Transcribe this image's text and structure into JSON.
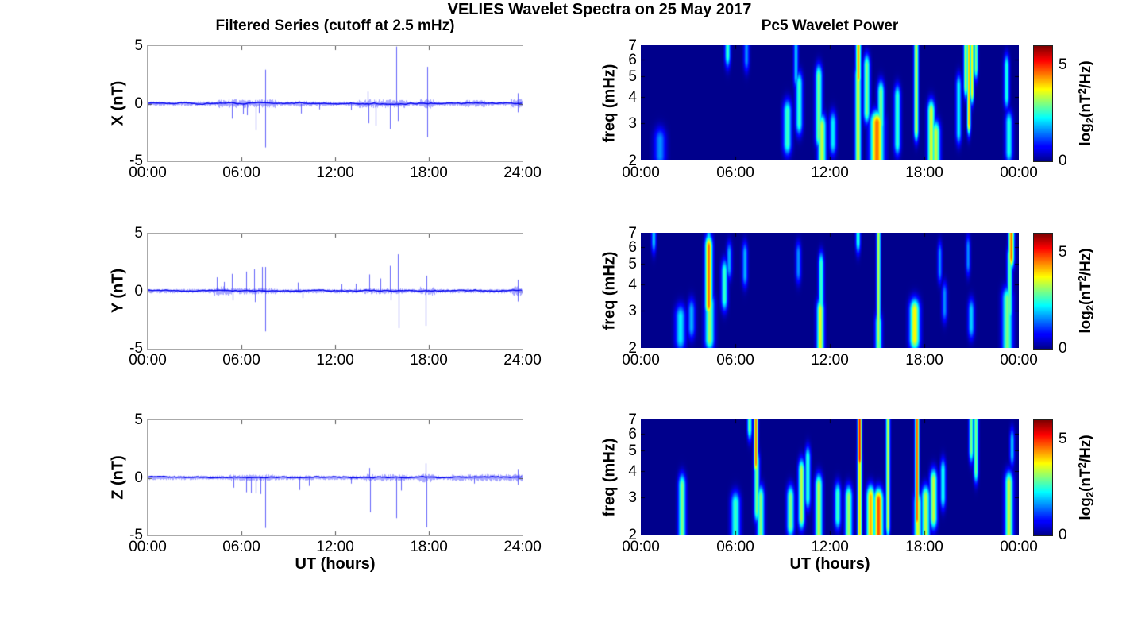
{
  "figure": {
    "title": "VELIES Wavelet Spectra on 25 May 2017",
    "background": "#ffffff"
  },
  "left_column": {
    "title": "Filtered Series (cutoff at 2.5 mHz)",
    "xlabel": "UT (hours)",
    "x_tick_labels": [
      "00:00",
      "06:00",
      "12:00",
      "18:00",
      "24:00"
    ],
    "y_tick_labels": [
      "5",
      "0",
      "-5"
    ]
  },
  "right_column": {
    "title": "Pc5 Wavelet Power",
    "xlabel": "UT (hours)",
    "ylabel": "freq (mHz)",
    "x_tick_labels": [
      "00:00",
      "06:00",
      "12:00",
      "18:00",
      "00:00"
    ],
    "y_tick_labels": [
      "7",
      "6",
      "5",
      "4",
      "3",
      "2"
    ],
    "colorbar": {
      "tick_labels": [
        "5",
        "0"
      ],
      "label": {
        "pre": "log",
        "sub": "2",
        "mid": "(nT",
        "sup": "2",
        "post": "/Hz)"
      }
    }
  },
  "chart_data": [
    {
      "type": "line",
      "series": "X",
      "ylabel": "X (nT)",
      "xlabel": "UT (hours)",
      "xlim_hours": [
        0,
        24
      ],
      "ylim": [
        -5,
        5
      ],
      "x_tick_hours": [
        0,
        6,
        12,
        18,
        24
      ],
      "x_tick_labels": [
        "00:00",
        "06:00",
        "12:00",
        "18:00",
        "24:00"
      ],
      "y_ticks": [
        5,
        0,
        -5
      ],
      "color": "#0000ee",
      "seed": 11,
      "noise_base_std": 0.06,
      "noise_bursts": [
        [
          4.5,
          8.2,
          0.12
        ],
        [
          9.4,
          10.6,
          0.08
        ],
        [
          13.4,
          16.6,
          0.12
        ],
        [
          17.4,
          18.3,
          0.13
        ],
        [
          20.2,
          21.6,
          0.1
        ],
        [
          23.2,
          24,
          0.13
        ]
      ],
      "spikes": [
        [
          5.4,
          -1.3
        ],
        [
          6.1,
          -0.9
        ],
        [
          6.35,
          -1.0
        ],
        [
          6.9,
          -2.3
        ],
        [
          7.1,
          -0.8
        ],
        [
          7.5,
          2.95
        ],
        [
          7.5,
          -3.8
        ],
        [
          9.8,
          -0.85
        ],
        [
          11.0,
          -0.5
        ],
        [
          13.0,
          -0.55
        ],
        [
          14.1,
          1.05
        ],
        [
          14.15,
          -1.7
        ],
        [
          14.6,
          -1.9
        ],
        [
          15.5,
          -2.2
        ],
        [
          15.9,
          4.95
        ],
        [
          16.0,
          -1.5
        ],
        [
          17.9,
          3.2
        ],
        [
          17.92,
          -2.9
        ],
        [
          23.7,
          0.9
        ],
        [
          23.72,
          -0.75
        ]
      ]
    },
    {
      "type": "line",
      "series": "Y",
      "ylabel": "Y (nT)",
      "xlabel": "UT (hours)",
      "xlim_hours": [
        0,
        24
      ],
      "ylim": [
        -5,
        5
      ],
      "x_tick_hours": [
        0,
        6,
        12,
        18,
        24
      ],
      "x_tick_labels": [
        "00:00",
        "06:00",
        "12:00",
        "18:00",
        "24:00"
      ],
      "y_ticks": [
        5,
        0,
        -5
      ],
      "color": "#0000ee",
      "seed": 22,
      "noise_base_std": 0.06,
      "noise_bursts": [
        [
          4.2,
          5.2,
          0.13
        ],
        [
          5.2,
          8.2,
          0.09
        ],
        [
          13.8,
          16.3,
          0.08
        ],
        [
          17.4,
          18.4,
          0.12
        ],
        [
          23.3,
          24,
          0.13
        ]
      ],
      "spikes": [
        [
          4.4,
          1.2
        ],
        [
          4.9,
          0.8
        ],
        [
          5.4,
          1.5
        ],
        [
          5.45,
          -0.8
        ],
        [
          6.3,
          1.7
        ],
        [
          6.8,
          1.9
        ],
        [
          6.85,
          -0.95
        ],
        [
          7.3,
          2.1
        ],
        [
          7.5,
          -3.5
        ],
        [
          7.55,
          2.1
        ],
        [
          9.6,
          0.75
        ],
        [
          9.9,
          -0.6
        ],
        [
          12.4,
          0.6
        ],
        [
          13.3,
          0.65
        ],
        [
          14.2,
          1.45
        ],
        [
          14.9,
          1.1
        ],
        [
          15.5,
          2.2
        ],
        [
          15.55,
          -0.8
        ],
        [
          16.0,
          3.2
        ],
        [
          16.05,
          -3.2
        ],
        [
          17.8,
          -3.0
        ],
        [
          17.85,
          1.35
        ],
        [
          23.7,
          1.0
        ],
        [
          23.72,
          -0.9
        ]
      ]
    },
    {
      "type": "line",
      "series": "Z",
      "ylabel": "Z (nT)",
      "xlabel": "UT (hours)",
      "xlim_hours": [
        0,
        24
      ],
      "ylim": [
        -5,
        5
      ],
      "x_tick_hours": [
        0,
        6,
        12,
        18,
        24
      ],
      "x_tick_labels": [
        "00:00",
        "06:00",
        "12:00",
        "18:00",
        "24:00"
      ],
      "y_ticks": [
        5,
        0,
        -5
      ],
      "color": "#0000ee",
      "seed": 33,
      "noise_base_std": 0.06,
      "noise_bursts": [
        [
          5.2,
          8.2,
          0.09
        ],
        [
          9.4,
          10.6,
          0.07
        ],
        [
          13.8,
          16.6,
          0.1
        ],
        [
          17.3,
          18.4,
          0.12
        ],
        [
          19.4,
          24,
          0.1
        ]
      ],
      "spikes": [
        [
          5.5,
          -0.85
        ],
        [
          6.3,
          -1.25
        ],
        [
          6.6,
          -1.3
        ],
        [
          6.9,
          -1.35
        ],
        [
          7.2,
          -1.4
        ],
        [
          7.5,
          -4.35
        ],
        [
          9.7,
          -1.05
        ],
        [
          10.3,
          -0.7
        ],
        [
          13.0,
          -0.5
        ],
        [
          14.2,
          0.85
        ],
        [
          14.25,
          -3.0
        ],
        [
          15.9,
          -3.5
        ],
        [
          16.2,
          -1.1
        ],
        [
          17.8,
          1.25
        ],
        [
          17.85,
          -4.3
        ],
        [
          20.9,
          -0.5
        ],
        [
          23.7,
          0.7
        ],
        [
          23.72,
          -0.6
        ]
      ]
    },
    {
      "type": "heatmap",
      "series": "X",
      "title": "Pc5 Wavelet Power",
      "ylabel": "freq (mHz)",
      "yscale": "log",
      "ylim_mhz": [
        2,
        7
      ],
      "xlim_hours": [
        0,
        24
      ],
      "x_tick_hours": [
        0,
        6,
        12,
        18,
        24
      ],
      "x_tick_labels": [
        "00:00",
        "06:00",
        "12:00",
        "18:00",
        "00:00"
      ],
      "y_ticks": [
        7,
        6,
        5,
        4,
        3,
        2
      ],
      "clim": [
        0,
        6
      ],
      "colormap": "jet",
      "colorbar_label": "log2(nT^2/Hz)",
      "colorbar_ticks": [
        5,
        0
      ],
      "features": [
        [
          1.2,
          2.1,
          2.5,
          0.25,
          1.6
        ],
        [
          5.5,
          6.3,
          7.0,
          0.12,
          2.6
        ],
        [
          6.7,
          6.0,
          7.0,
          0.12,
          1.6
        ],
        [
          9.3,
          2.4,
          3.4,
          0.18,
          2.6
        ],
        [
          9.85,
          5.0,
          7.0,
          0.1,
          2.0
        ],
        [
          10.05,
          3.0,
          4.6,
          0.15,
          2.6
        ],
        [
          11.3,
          2.6,
          5.0,
          0.15,
          3.0
        ],
        [
          11.5,
          2.0,
          2.9,
          0.18,
          3.4
        ],
        [
          12.2,
          2.4,
          3.0,
          0.15,
          2.2
        ],
        [
          13.8,
          2.0,
          5.0,
          0.13,
          3.6
        ],
        [
          13.82,
          5.0,
          7.0,
          0.11,
          4.3
        ],
        [
          14.35,
          3.4,
          5.6,
          0.14,
          3.0
        ],
        [
          15.0,
          2.0,
          3.0,
          0.28,
          4.6
        ],
        [
          15.25,
          3.0,
          4.2,
          0.15,
          3.0
        ],
        [
          16.3,
          2.4,
          4.0,
          0.14,
          2.6
        ],
        [
          17.5,
          2.8,
          7.0,
          0.1,
          3.5
        ],
        [
          18.45,
          2.0,
          3.4,
          0.16,
          3.6
        ],
        [
          18.75,
          2.0,
          2.7,
          0.18,
          3.4
        ],
        [
          20.2,
          2.7,
          4.5,
          0.12,
          2.2
        ],
        [
          20.65,
          4.5,
          7.0,
          0.09,
          3.4
        ],
        [
          20.85,
          3.0,
          7.0,
          0.08,
          4.2
        ],
        [
          21.05,
          4.2,
          7.0,
          0.08,
          3.8
        ],
        [
          21.3,
          5.5,
          7.0,
          0.09,
          3.0
        ],
        [
          23.25,
          4.0,
          5.6,
          0.12,
          2.4
        ],
        [
          23.4,
          2.2,
          3.0,
          0.16,
          2.4
        ]
      ]
    },
    {
      "type": "heatmap",
      "series": "Y",
      "title": "Pc5 Wavelet Power",
      "ylabel": "freq (mHz)",
      "yscale": "log",
      "ylim_mhz": [
        2,
        7
      ],
      "xlim_hours": [
        0,
        24
      ],
      "x_tick_hours": [
        0,
        6,
        12,
        18,
        24
      ],
      "x_tick_labels": [
        "00:00",
        "06:00",
        "12:00",
        "18:00",
        "00:00"
      ],
      "y_ticks": [
        7,
        6,
        5,
        4,
        3,
        2
      ],
      "clim": [
        0,
        6
      ],
      "colormap": "jet",
      "colorbar_label": "log2(nT^2/Hz)",
      "colorbar_ticks": [
        5,
        0
      ],
      "features": [
        [
          0.8,
          6.4,
          7.0,
          0.1,
          2.0
        ],
        [
          2.5,
          2.2,
          2.8,
          0.22,
          2.2
        ],
        [
          3.2,
          2.5,
          3.0,
          0.16,
          1.8
        ],
        [
          4.3,
          3.2,
          6.0,
          0.16,
          4.6
        ],
        [
          4.35,
          2.2,
          3.2,
          0.2,
          3.2
        ],
        [
          4.3,
          6.0,
          6.6,
          0.12,
          2.2
        ],
        [
          5.3,
          3.4,
          4.6,
          0.14,
          2.6
        ],
        [
          5.6,
          4.8,
          5.6,
          0.12,
          1.8
        ],
        [
          6.6,
          4.4,
          5.6,
          0.12,
          1.8
        ],
        [
          10.0,
          4.6,
          5.6,
          0.12,
          1.6
        ],
        [
          11.4,
          2.0,
          3.0,
          0.16,
          3.6
        ],
        [
          11.45,
          3.0,
          5.0,
          0.12,
          2.6
        ],
        [
          13.8,
          6.4,
          7.0,
          0.1,
          2.6
        ],
        [
          15.1,
          2.2,
          7.0,
          0.09,
          3.4
        ],
        [
          15.1,
          2.0,
          2.6,
          0.14,
          3.0
        ],
        [
          17.4,
          2.2,
          3.0,
          0.22,
          3.8
        ],
        [
          19.0,
          4.6,
          5.6,
          0.1,
          1.6
        ],
        [
          19.3,
          3.0,
          3.6,
          0.12,
          1.6
        ],
        [
          20.8,
          5.0,
          6.0,
          0.1,
          1.6
        ],
        [
          21.0,
          2.5,
          3.0,
          0.14,
          2.0
        ],
        [
          23.55,
          5.4,
          7.0,
          0.12,
          4.6
        ],
        [
          23.45,
          3.0,
          5.4,
          0.12,
          2.8
        ],
        [
          23.3,
          2.0,
          3.4,
          0.22,
          3.0
        ]
      ]
    },
    {
      "type": "heatmap",
      "series": "Z",
      "title": "Pc5 Wavelet Power",
      "ylabel": "freq (mHz)",
      "yscale": "log",
      "ylim_mhz": [
        2,
        7
      ],
      "xlim_hours": [
        0,
        24
      ],
      "x_tick_hours": [
        0,
        6,
        12,
        18,
        24
      ],
      "x_tick_labels": [
        "00:00",
        "06:00",
        "12:00",
        "18:00",
        "00:00"
      ],
      "y_ticks": [
        7,
        6,
        5,
        4,
        3,
        2
      ],
      "clim": [
        0,
        6
      ],
      "colormap": "jet",
      "colorbar_label": "log2(nT^2/Hz)",
      "colorbar_ticks": [
        5,
        0
      ],
      "features": [
        [
          2.6,
          2.0,
          3.4,
          0.16,
          3.0
        ],
        [
          6.0,
          2.0,
          2.8,
          0.2,
          2.6
        ],
        [
          6.9,
          6.4,
          7.0,
          0.1,
          3.0
        ],
        [
          7.3,
          4.4,
          7.0,
          0.09,
          4.6
        ],
        [
          7.35,
          2.6,
          4.4,
          0.12,
          3.0
        ],
        [
          7.6,
          2.0,
          3.0,
          0.16,
          3.0
        ],
        [
          9.5,
          2.2,
          3.0,
          0.16,
          3.0
        ],
        [
          10.2,
          2.4,
          4.0,
          0.14,
          3.4
        ],
        [
          10.6,
          3.0,
          4.6,
          0.12,
          2.6
        ],
        [
          11.3,
          2.0,
          3.4,
          0.16,
          3.4
        ],
        [
          12.5,
          2.4,
          3.1,
          0.14,
          2.6
        ],
        [
          13.2,
          2.0,
          3.0,
          0.16,
          3.2
        ],
        [
          13.9,
          2.0,
          4.6,
          0.1,
          4.0
        ],
        [
          13.9,
          4.6,
          7.0,
          0.09,
          5.2
        ],
        [
          14.6,
          2.0,
          3.0,
          0.18,
          4.2
        ],
        [
          15.1,
          2.0,
          2.9,
          0.2,
          4.8
        ],
        [
          15.7,
          2.2,
          7.0,
          0.09,
          3.4
        ],
        [
          17.55,
          2.4,
          7.0,
          0.09,
          4.8
        ],
        [
          17.6,
          2.0,
          2.8,
          0.16,
          3.6
        ],
        [
          18.1,
          2.0,
          3.0,
          0.18,
          3.4
        ],
        [
          18.6,
          2.4,
          3.6,
          0.16,
          3.4
        ],
        [
          19.2,
          3.0,
          4.0,
          0.12,
          2.4
        ],
        [
          21.0,
          5.0,
          7.0,
          0.1,
          3.0
        ],
        [
          21.3,
          4.0,
          7.0,
          0.1,
          3.0
        ],
        [
          23.4,
          2.0,
          3.5,
          0.18,
          3.4
        ],
        [
          23.6,
          4.8,
          5.6,
          0.1,
          2.0
        ]
      ]
    }
  ]
}
